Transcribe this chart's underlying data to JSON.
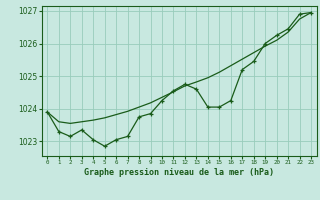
{
  "title": "Graphe pression niveau de la mer (hPa)",
  "bg_color": "#c8e8e0",
  "plot_bg_color": "#c8e8e0",
  "grid_color": "#99ccbb",
  "line_color": "#1a5c1a",
  "ylim": [
    1022.55,
    1027.15
  ],
  "yticks": [
    1023,
    1024,
    1025,
    1026,
    1027
  ],
  "xlim": [
    -0.5,
    23.5
  ],
  "xticks": [
    0,
    1,
    2,
    3,
    4,
    5,
    6,
    7,
    8,
    9,
    10,
    11,
    12,
    13,
    14,
    15,
    16,
    17,
    18,
    19,
    20,
    21,
    22,
    23
  ],
  "hours": [
    0,
    1,
    2,
    3,
    4,
    5,
    6,
    7,
    8,
    9,
    10,
    11,
    12,
    13,
    14,
    15,
    16,
    17,
    18,
    19,
    20,
    21,
    22,
    23
  ],
  "pressure_detail": [
    1023.9,
    1023.3,
    1023.15,
    1023.35,
    1023.05,
    1022.85,
    1023.05,
    1023.15,
    1023.75,
    1023.85,
    1024.25,
    1024.55,
    1024.75,
    1024.6,
    1024.05,
    1024.05,
    1024.25,
    1025.2,
    1025.45,
    1026.0,
    1026.25,
    1026.45,
    1026.9,
    1026.95
  ],
  "pressure_smooth": [
    1023.9,
    1023.6,
    1023.55,
    1023.6,
    1023.65,
    1023.72,
    1023.82,
    1023.92,
    1024.05,
    1024.18,
    1024.35,
    1024.52,
    1024.7,
    1024.82,
    1024.95,
    1025.12,
    1025.32,
    1025.52,
    1025.72,
    1025.92,
    1026.1,
    1026.35,
    1026.75,
    1026.95
  ]
}
